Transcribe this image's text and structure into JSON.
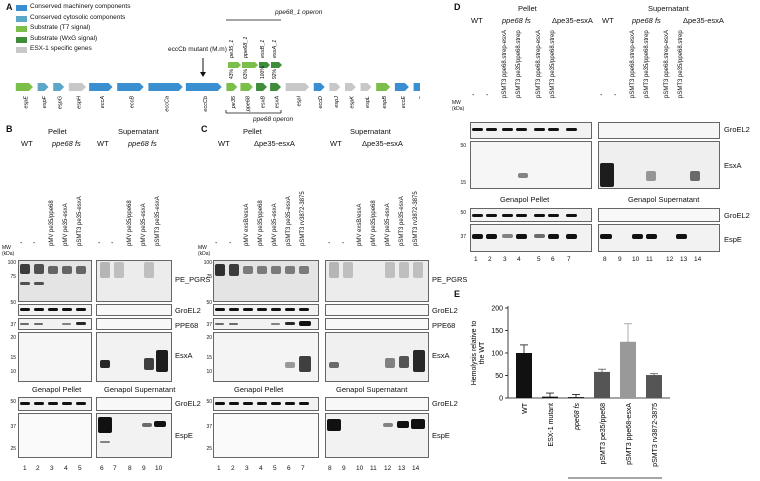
{
  "panelA": {
    "label": "A",
    "legend": [
      {
        "text": "Conserved machinery components",
        "color": "#3a8fd1"
      },
      {
        "text": "Conserved cytosolic components",
        "color": "#5ca6c9"
      },
      {
        "text": "Substrate (T7 signal)",
        "color": "#7bbf4a"
      },
      {
        "text": "Substrate (WxG signal)",
        "color": "#3f8c3c"
      },
      {
        "text": "ESX-1 specific genes",
        "color": "#c8c8c8"
      }
    ],
    "genes": [
      "espE",
      "espF",
      "espG",
      "espH",
      "eccA",
      "eccB",
      "eccCa",
      "eccCb",
      "pe35",
      "ppe68",
      "esxB",
      "esxA",
      "espI",
      "eccD",
      "espJ",
      "espK",
      "espL",
      "espB",
      "eccE",
      "mycP"
    ],
    "mutant_label": "eccCb mutant (M.m)",
    "operon_top": "ppe68_1 operon",
    "operon_bottom": "ppe68 operon",
    "top_genes": [
      "pe35_1",
      "ppe68_1",
      "esxB_1",
      "esxA_1"
    ],
    "identities": [
      "43%",
      "63%",
      "100%",
      "92%"
    ]
  },
  "panelB": {
    "label": "B",
    "pellet": "Pellet",
    "supernatant": "Supernatant",
    "wt": "WT",
    "strain": "ppe68 fs",
    "constructs": [
      "-",
      "-",
      "pMV pe35/ppe68",
      "pMV pe35-esxA",
      "pSMT3 pe35-esxA"
    ],
    "mw_label": "MW (kDa)",
    "mw_top": [
      "100",
      "75",
      "50",
      "37",
      "20",
      "15",
      "10"
    ],
    "mw_bottom": [
      "50",
      "37",
      "25"
    ],
    "antibodies_top": [
      "PE_PGRS",
      "GroEL2",
      "PPE68",
      "EsxA"
    ],
    "antibodies_bottom": [
      "GroEL2",
      "EspE"
    ],
    "genapol_pellet": "Genapol Pellet",
    "genapol_supernatant": "Genapol Supernatant",
    "lanes": [
      "1",
      "2",
      "3",
      "4",
      "5",
      "6",
      "7",
      "8",
      "9",
      "10"
    ]
  },
  "panelC": {
    "label": "C",
    "pellet": "Pellet",
    "supernatant": "Supernatant",
    "wt": "WT",
    "strain": "Δpe35-esxA",
    "constructs": [
      "-",
      "-",
      "pMV exsB/esxA",
      "pMV pe35/ppe68",
      "pMV pe35-esxA",
      "pSMT3 pe35-esxA",
      "pSMT3 rv3872-3875"
    ],
    "mw_label": "MW (kDa)",
    "mw_top": [
      "100",
      "75",
      "50",
      "37",
      "20",
      "15",
      "10"
    ],
    "mw_bottom": [
      "50",
      "37",
      "25"
    ],
    "antibodies_top": [
      "PE_PGRS",
      "GroEL2",
      "PPE68",
      "EsxA"
    ],
    "antibodies_bottom": [
      "GroEL2",
      "EspE"
    ],
    "genapol_pellet": "Genapol Pellet",
    "genapol_supernatant": "Genapol Supernatant",
    "lanes": [
      "1",
      "2",
      "3",
      "4",
      "5",
      "6",
      "7",
      "8",
      "9",
      "10",
      "11",
      "12",
      "13",
      "14"
    ]
  },
  "panelD": {
    "label": "D",
    "pellet": "Pellet",
    "supernatant": "Supernatant",
    "wt": "WT",
    "strain1": "ppe68 fs",
    "strain2": "Δpe35-esxA",
    "constructs": [
      "-",
      "-",
      "pSMT3 ppe68.strep-esxA",
      "pSMT3 pe35/ppe68.strep",
      "pSMT3 ppe68.strep-esxA",
      "pSMT3 pe35/ppe68.strep"
    ],
    "mw_label": "MW (kDa)",
    "mw_top": [
      "50",
      "15"
    ],
    "mw_bottom": [
      "50",
      "37"
    ],
    "antibodies_top": [
      "GroEL2",
      "EsxA"
    ],
    "antibodies_bottom": [
      "GroEL2",
      "EspE"
    ],
    "genapol_pellet": "Genapol Pellet",
    "genapol_supernatant": "Genapol Supernatant",
    "lanes": [
      "1",
      "2",
      "3",
      "4",
      "5",
      "6",
      "7",
      "8",
      "9",
      "10",
      "11",
      "12",
      "13",
      "14"
    ]
  },
  "panelE": {
    "label": "E",
    "ylabel": "Hemolysis relative to the WT",
    "xgroup": "ppe68 fs",
    "chart_data": {
      "type": "bar",
      "categories": [
        "WT",
        "ESX-1 mutant",
        "ppe68 fs",
        "pSMT3 pe35/ppe68",
        "pSMT3 ppe68-esxA",
        "pSMT3 rv3872-3875"
      ],
      "values": [
        100,
        3,
        2,
        58,
        125,
        51
      ],
      "errors": [
        18,
        8,
        6,
        6,
        40,
        3
      ],
      "colors": [
        "#111111",
        "#111111",
        "#111111",
        "#555555",
        "#999999",
        "#555555"
      ],
      "yticks": [
        "0",
        "50",
        "100",
        "150",
        "200"
      ],
      "ylim": [
        0,
        200
      ]
    }
  }
}
